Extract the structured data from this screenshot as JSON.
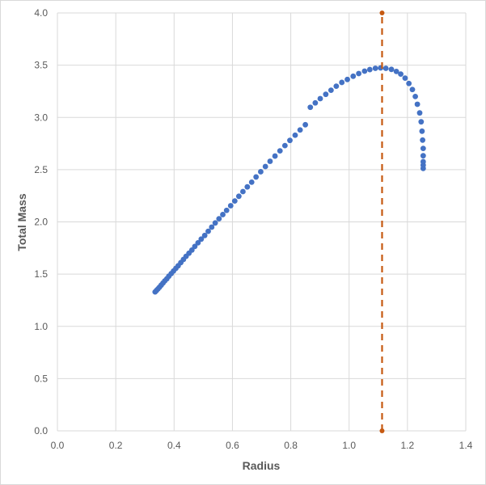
{
  "chart_data": {
    "type": "scatter",
    "title": "",
    "xlabel": "Radius",
    "ylabel": "Total Mass",
    "xlim": [
      0,
      1.4
    ],
    "ylim": [
      0,
      4.0
    ],
    "xticks": [
      "0.0",
      "0.2",
      "0.4",
      "0.6",
      "0.8",
      "1.0",
      "1.2",
      "1.4"
    ],
    "yticks": [
      "0.0",
      "0.5",
      "1.0",
      "1.5",
      "2.0",
      "2.5",
      "3.0",
      "3.5",
      "4.0"
    ],
    "grid": true,
    "legend": "none",
    "series": [
      {
        "color": "#4472C4",
        "marker": "circle",
        "points": [
          [
            0.335,
            1.33
          ],
          [
            0.34,
            1.345
          ],
          [
            0.345,
            1.36
          ],
          [
            0.35,
            1.375
          ],
          [
            0.356,
            1.395
          ],
          [
            0.362,
            1.415
          ],
          [
            0.368,
            1.435
          ],
          [
            0.375,
            1.455
          ],
          [
            0.382,
            1.48
          ],
          [
            0.39,
            1.505
          ],
          [
            0.398,
            1.53
          ],
          [
            0.406,
            1.555
          ],
          [
            0.414,
            1.58
          ],
          [
            0.423,
            1.61
          ],
          [
            0.432,
            1.64
          ],
          [
            0.441,
            1.67
          ],
          [
            0.451,
            1.7
          ],
          [
            0.461,
            1.73
          ],
          [
            0.471,
            1.765
          ],
          [
            0.482,
            1.8
          ],
          [
            0.493,
            1.835
          ],
          [
            0.505,
            1.87
          ],
          [
            0.517,
            1.91
          ],
          [
            0.529,
            1.95
          ],
          [
            0.541,
            1.99
          ],
          [
            0.554,
            2.03
          ],
          [
            0.567,
            2.07
          ],
          [
            0.58,
            2.11
          ],
          [
            0.594,
            2.155
          ],
          [
            0.608,
            2.2
          ],
          [
            0.622,
            2.245
          ],
          [
            0.636,
            2.29
          ],
          [
            0.651,
            2.335
          ],
          [
            0.666,
            2.38
          ],
          [
            0.681,
            2.43
          ],
          [
            0.697,
            2.48
          ],
          [
            0.713,
            2.53
          ],
          [
            0.729,
            2.58
          ],
          [
            0.746,
            2.63
          ],
          [
            0.763,
            2.68
          ],
          [
            0.78,
            2.73
          ],
          [
            0.797,
            2.78
          ],
          [
            0.815,
            2.83
          ],
          [
            0.832,
            2.88
          ],
          [
            0.85,
            2.93
          ],
          [
            0.867,
            3.097
          ],
          [
            0.884,
            3.139
          ],
          [
            0.901,
            3.18
          ],
          [
            0.92,
            3.221
          ],
          [
            0.938,
            3.26
          ],
          [
            0.956,
            3.299
          ],
          [
            0.975,
            3.335
          ],
          [
            0.994,
            3.363
          ],
          [
            1.014,
            3.394
          ],
          [
            1.033,
            3.42
          ],
          [
            1.053,
            3.443
          ],
          [
            1.071,
            3.458
          ],
          [
            1.09,
            3.47
          ],
          [
            1.108,
            3.474
          ],
          [
            1.126,
            3.47
          ],
          [
            1.145,
            3.46
          ],
          [
            1.162,
            3.44
          ],
          [
            1.177,
            3.415
          ],
          [
            1.192,
            3.376
          ],
          [
            1.205,
            3.325
          ],
          [
            1.217,
            3.267
          ],
          [
            1.227,
            3.2
          ],
          [
            1.234,
            3.126
          ],
          [
            1.242,
            3.043
          ],
          [
            1.247,
            2.958
          ],
          [
            1.25,
            2.868
          ],
          [
            1.252,
            2.783
          ],
          [
            1.254,
            2.703
          ],
          [
            1.254,
            2.633
          ],
          [
            1.254,
            2.576
          ],
          [
            1.254,
            2.543
          ],
          [
            1.254,
            2.512
          ]
        ]
      },
      {
        "color": "#C65911",
        "line": "dashed",
        "marker": "circle",
        "points": [
          [
            1.113,
            0.0
          ],
          [
            1.113,
            4.0
          ]
        ]
      }
    ]
  }
}
